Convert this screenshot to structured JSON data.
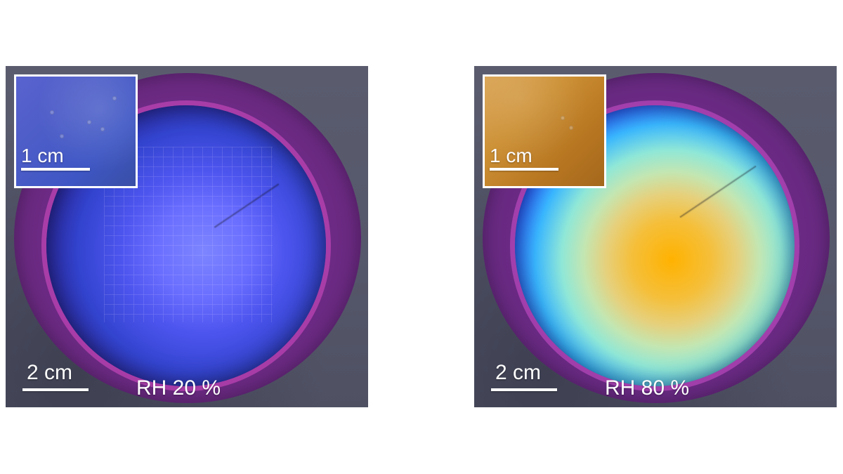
{
  "panels": [
    {
      "inset_scale": "1 cm",
      "main_scale": "2 cm",
      "condition": "RH 20 %"
    },
    {
      "inset_scale": "1 cm",
      "main_scale": "2 cm",
      "condition": "RH 80 %"
    }
  ],
  "colors": {
    "page_background": "#ffffff",
    "panel_background": "#5b5d6d",
    "label_text": "#ffffff",
    "rh20_film": "#4d55ef",
    "rh80_film": "#f5bf3a"
  }
}
